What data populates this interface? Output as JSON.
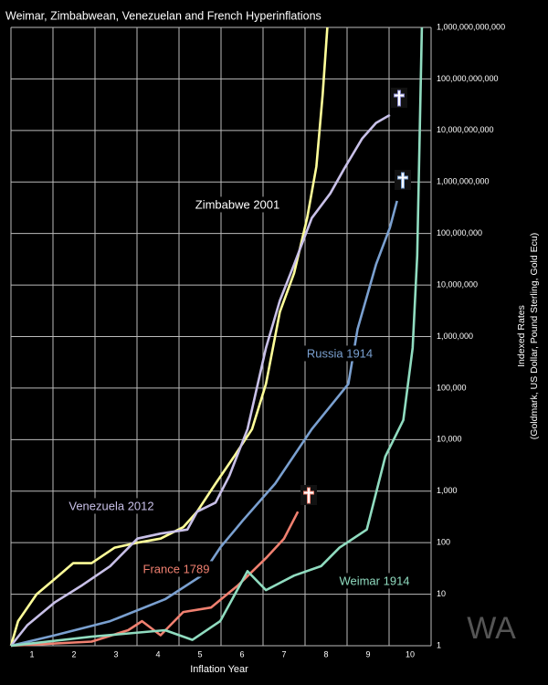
{
  "chart_data": {
    "type": "line",
    "title": "Weimar, Zimbabwean, Venezuelan and French Hyperinflations",
    "xlabel": "Inflation Year",
    "ylabel": [
      "Indexed Rates",
      "(Goldmark, US Dollar, Pound Sterling, Gold Ecu)"
    ],
    "watermark": "WA",
    "log_y": true,
    "grid": true,
    "xlim": [
      0.5,
      10.5
    ],
    "xticks": [
      1,
      2,
      3,
      4,
      5,
      6,
      7,
      8,
      9,
      10
    ],
    "xgrid": [
      0.5,
      1.5,
      2.5,
      3.5,
      4.5,
      5.5,
      6.5,
      7.5,
      8.5,
      9.5,
      10.5
    ],
    "ylim": [
      1,
      1000000000000
    ],
    "yticks": [
      1,
      10,
      100,
      {
        "value": 1000,
        "label": "1,000"
      },
      {
        "value": 10000,
        "label": "10,000"
      },
      {
        "value": 100000,
        "label": "100,000"
      },
      {
        "value": 1000000,
        "label": "1,000,000"
      },
      {
        "value": 10000000,
        "label": "10,000,000"
      },
      {
        "value": 100000000,
        "label": "100,000,000"
      },
      {
        "value": 1000000000,
        "label": "1,000,000,000"
      },
      {
        "value": 10000000000,
        "label": "10,000,000,000"
      },
      {
        "value": 100000000000,
        "label": "100,000,000,000"
      },
      {
        "value": 1000000000000,
        "label": "1,000,000,000,000"
      }
    ],
    "series": [
      {
        "name": "Zimbabwe 2001",
        "color": "#ffff99",
        "x": [
          0.5,
          0.67,
          1.11,
          1.55,
          1.98,
          2.42,
          2.97,
          3.51,
          4.06,
          4.6,
          4.93,
          5.37,
          5.81,
          6.24,
          6.57,
          6.9,
          7.24,
          7.55,
          7.77,
          7.92,
          8.03
        ],
        "values": [
          1,
          3,
          10,
          20,
          40,
          40,
          80,
          100,
          120,
          200,
          400,
          1400,
          4700,
          16000,
          120000,
          3000000,
          17000000,
          200000000,
          2000000000,
          50000000000,
          1000000000000
        ]
      },
      {
        "name": "Venezuela 2012",
        "color": "#c8c0e8",
        "x": [
          0.5,
          0.89,
          1.55,
          2.2,
          2.86,
          3.51,
          4.06,
          4.7,
          4.93,
          5.37,
          5.7,
          6.13,
          6.57,
          6.9,
          7.24,
          7.66,
          8.1,
          8.43,
          8.86,
          9.19,
          9.52
        ],
        "values": [
          1,
          2.5,
          7,
          15,
          35,
          120,
          150,
          180,
          400,
          600,
          2000,
          16000,
          600000,
          5000000,
          25000000,
          200000000,
          600000000,
          1800000000,
          7000000000,
          14000000000,
          20000000000
        ]
      },
      {
        "name": "Russia 1914",
        "color": "#7aa0d0",
        "x": [
          0.5,
          1.55,
          2.86,
          4.17,
          5.04,
          5.48,
          6.02,
          6.79,
          7.66,
          8.53,
          8.75,
          9.19,
          9.52,
          9.69
        ],
        "values": [
          1,
          1.6,
          3,
          8,
          23,
          80,
          270,
          1400,
          16000,
          120000,
          1400000,
          25000000,
          130000000,
          430000000
        ]
      },
      {
        "name": "France 1789",
        "color": "#f08070",
        "x": [
          0.5,
          2.42,
          3.29,
          3.62,
          4.06,
          4.6,
          5.26,
          5.91,
          6.57,
          7.0,
          7.33
        ],
        "values": [
          1,
          1.2,
          2,
          3,
          1.6,
          4.5,
          5.5,
          15,
          50,
          120,
          400
        ]
      },
      {
        "name": "Weimar 1914",
        "color": "#90dcc0",
        "x": [
          0.5,
          2.42,
          4.17,
          4.82,
          5.48,
          6.13,
          6.57,
          7.24,
          7.88,
          8.32,
          8.97,
          9.41,
          9.84,
          10.06,
          10.17,
          10.28
        ],
        "values": [
          1,
          1.5,
          2,
          1.3,
          3,
          28,
          12,
          23,
          35,
          80,
          180,
          4700,
          24000,
          600000,
          37000000,
          1000000000000
        ]
      }
    ]
  }
}
